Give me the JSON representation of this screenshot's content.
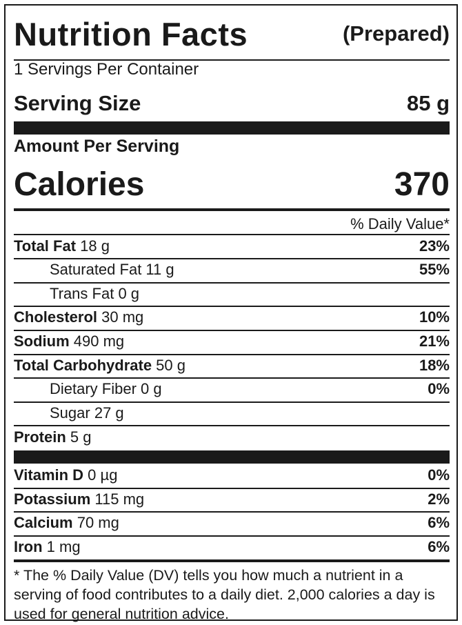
{
  "header": {
    "title": "Nutrition Facts",
    "qualifier": "(Prepared)"
  },
  "servings_per_container": "1 Servings Per Container",
  "serving_size": {
    "label": "Serving Size",
    "value": "85 g"
  },
  "amount_per_serving": "Amount Per Serving",
  "calories": {
    "label": "Calories",
    "value": "370"
  },
  "daily_value_header": "% Daily Value*",
  "nutrients": [
    {
      "name": "Total Fat",
      "amount": " 18 g",
      "dv": "23%"
    },
    {
      "name": "Saturated Fat",
      "amount": " 11 g",
      "dv": "55%"
    },
    {
      "name": "Trans Fat",
      "amount": " 0 g",
      "dv": ""
    },
    {
      "name": "Cholesterol",
      "amount": " 30 mg",
      "dv": "10%"
    },
    {
      "name": "Sodium",
      "amount": " 490 mg",
      "dv": "21%"
    },
    {
      "name": "Total Carbohydrate",
      "amount": " 50 g",
      "dv": "18%"
    },
    {
      "name": "Dietary Fiber",
      "amount": " 0 g",
      "dv": "0%"
    },
    {
      "name": "Sugar",
      "amount": " 27 g",
      "dv": ""
    },
    {
      "name": "Protein",
      "amount": " 5 g",
      "dv": ""
    }
  ],
  "vitamins": [
    {
      "name": "Vitamin D",
      "amount": " 0 µg",
      "dv": "0%"
    },
    {
      "name": "Potassium",
      "amount": " 115 mg",
      "dv": "2%"
    },
    {
      "name": "Calcium",
      "amount": " 70 mg",
      "dv": "6%"
    },
    {
      "name": "Iron",
      "amount": " 1 mg",
      "dv": "6%"
    }
  ],
  "footnote": "* The % Daily Value (DV) tells you how much a nutrient in a serving of food contributes to a daily diet. 2,000 calories a day is used for general nutrition advice."
}
